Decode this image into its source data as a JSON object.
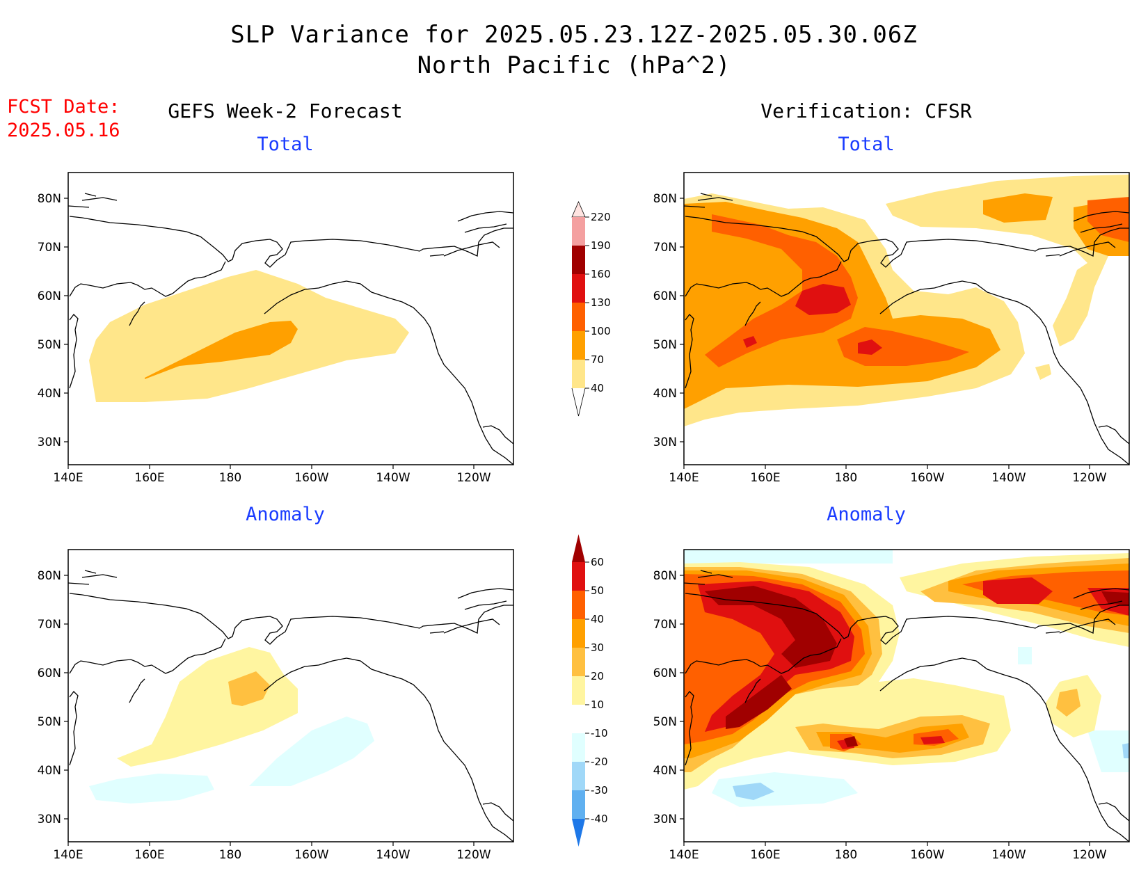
{
  "title_line1": "SLP Variance for 2025.05.23.12Z-2025.05.30.06Z",
  "title_line2": "North Pacific (hPa^2)",
  "fcst_label": "FCST Date:",
  "fcst_date": "2025.05.16",
  "left_column_title": "GEFS Week-2 Forecast",
  "right_column_title": "Verification: CFSR",
  "panel_titles": {
    "top_left": "Total",
    "top_right": "Total",
    "bottom_left": "Anomaly",
    "bottom_right": "Anomaly"
  },
  "lat_labels": [
    "80N",
    "70N",
    "60N",
    "50N",
    "40N",
    "30N"
  ],
  "lon_labels": [
    "140E",
    "160E",
    "180",
    "160W",
    "140W",
    "120W"
  ],
  "total_colorbar": {
    "levels": [
      "220",
      "190",
      "160",
      "130",
      "100",
      "70",
      "40"
    ],
    "colors": [
      "#ffe4e1",
      "#f4a0a0",
      "#a00000",
      "#e01010",
      "#ff6000",
      "#ffa000",
      "#ffe68a"
    ]
  },
  "anomaly_colorbar": {
    "levels": [
      "60",
      "50",
      "40",
      "30",
      "20",
      "10",
      "-10",
      "-20",
      "-30",
      "-40"
    ],
    "colors": [
      "#a00000",
      "#e01010",
      "#ff6000",
      "#ffa000",
      "#ffc040",
      "#fff5a0",
      "#ffffff",
      "#e0ffff",
      "#a0d8f8",
      "#60b0f0",
      "#1e78e8"
    ]
  }
}
